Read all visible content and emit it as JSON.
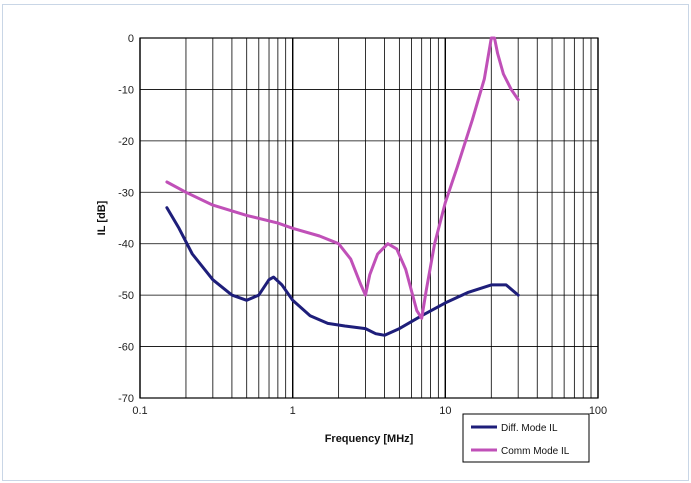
{
  "chart_data": {
    "type": "line",
    "title": "",
    "xlabel": "Frequency [MHz]",
    "ylabel": "IL [dB]",
    "x_scale": "log",
    "xlim": [
      0.1,
      100
    ],
    "ylim": [
      -70,
      0
    ],
    "x_major_ticks": [
      "0.1",
      "1",
      "10",
      "100"
    ],
    "y_ticks": [
      "0",
      "-10",
      "-20",
      "-30",
      "-40",
      "-50",
      "-60",
      "-70"
    ],
    "grid": true,
    "legend_position": "bottom-right",
    "series": [
      {
        "name": "Diff. Mode IL",
        "color": "#1e1e7a",
        "points": [
          [
            0.15,
            -33
          ],
          [
            0.18,
            -37
          ],
          [
            0.22,
            -42
          ],
          [
            0.3,
            -47
          ],
          [
            0.4,
            -50
          ],
          [
            0.5,
            -51
          ],
          [
            0.6,
            -50
          ],
          [
            0.7,
            -47
          ],
          [
            0.75,
            -46.5
          ],
          [
            0.85,
            -48
          ],
          [
            1.0,
            -51
          ],
          [
            1.3,
            -54
          ],
          [
            1.7,
            -55.5
          ],
          [
            2.2,
            -56
          ],
          [
            3.0,
            -56.5
          ],
          [
            3.5,
            -57.5
          ],
          [
            4.0,
            -57.8
          ],
          [
            5.0,
            -56.5
          ],
          [
            7.0,
            -54
          ],
          [
            10.0,
            -51.5
          ],
          [
            14.0,
            -49.5
          ],
          [
            20.0,
            -48
          ],
          [
            25.0,
            -48
          ],
          [
            30.0,
            -50
          ]
        ]
      },
      {
        "name": "Comm Mode IL",
        "color": "#c050b8",
        "points": [
          [
            0.15,
            -28
          ],
          [
            0.2,
            -30
          ],
          [
            0.3,
            -32.5
          ],
          [
            0.5,
            -34.5
          ],
          [
            0.8,
            -36
          ],
          [
            1.0,
            -37
          ],
          [
            1.5,
            -38.5
          ],
          [
            2.0,
            -40
          ],
          [
            2.4,
            -43
          ],
          [
            2.8,
            -48
          ],
          [
            3.0,
            -50
          ],
          [
            3.2,
            -46
          ],
          [
            3.6,
            -42
          ],
          [
            4.2,
            -40
          ],
          [
            4.8,
            -41
          ],
          [
            5.5,
            -45
          ],
          [
            6.5,
            -53
          ],
          [
            7.0,
            -54.5
          ],
          [
            7.5,
            -49
          ],
          [
            8.5,
            -40
          ],
          [
            10.0,
            -32
          ],
          [
            12.0,
            -25
          ],
          [
            15.0,
            -16
          ],
          [
            18.0,
            -8
          ],
          [
            20.0,
            0
          ],
          [
            21.0,
            0
          ],
          [
            22.0,
            -3
          ],
          [
            24.0,
            -7
          ],
          [
            27.0,
            -10
          ],
          [
            30.0,
            -12
          ]
        ]
      }
    ]
  }
}
